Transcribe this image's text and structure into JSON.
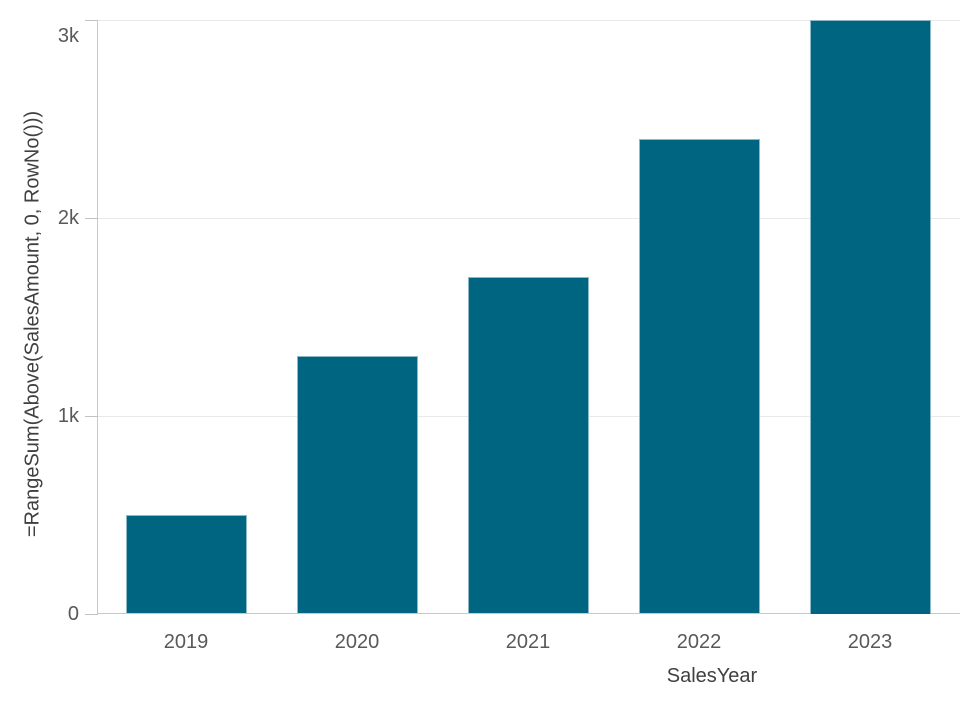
{
  "chart_data": {
    "type": "bar",
    "title": "",
    "categories": [
      "2019",
      "2020",
      "2021",
      "2022",
      "2023"
    ],
    "values": [
      500,
      1300,
      1700,
      2400,
      3000
    ],
    "xlabel": "SalesYear",
    "ylabel": "=RangeSum(Above(SalesAmount, 0, RowNo()))",
    "ylim": [
      0,
      3000
    ],
    "yticks": [
      {
        "value": 0,
        "label": "0"
      },
      {
        "value": 1000,
        "label": "1k"
      },
      {
        "value": 2000,
        "label": "2k"
      },
      {
        "value": 3000,
        "label": "3k"
      }
    ],
    "grid": true,
    "legend_position": "none",
    "bar_color": "#006580",
    "background_color": "#ffffff"
  }
}
